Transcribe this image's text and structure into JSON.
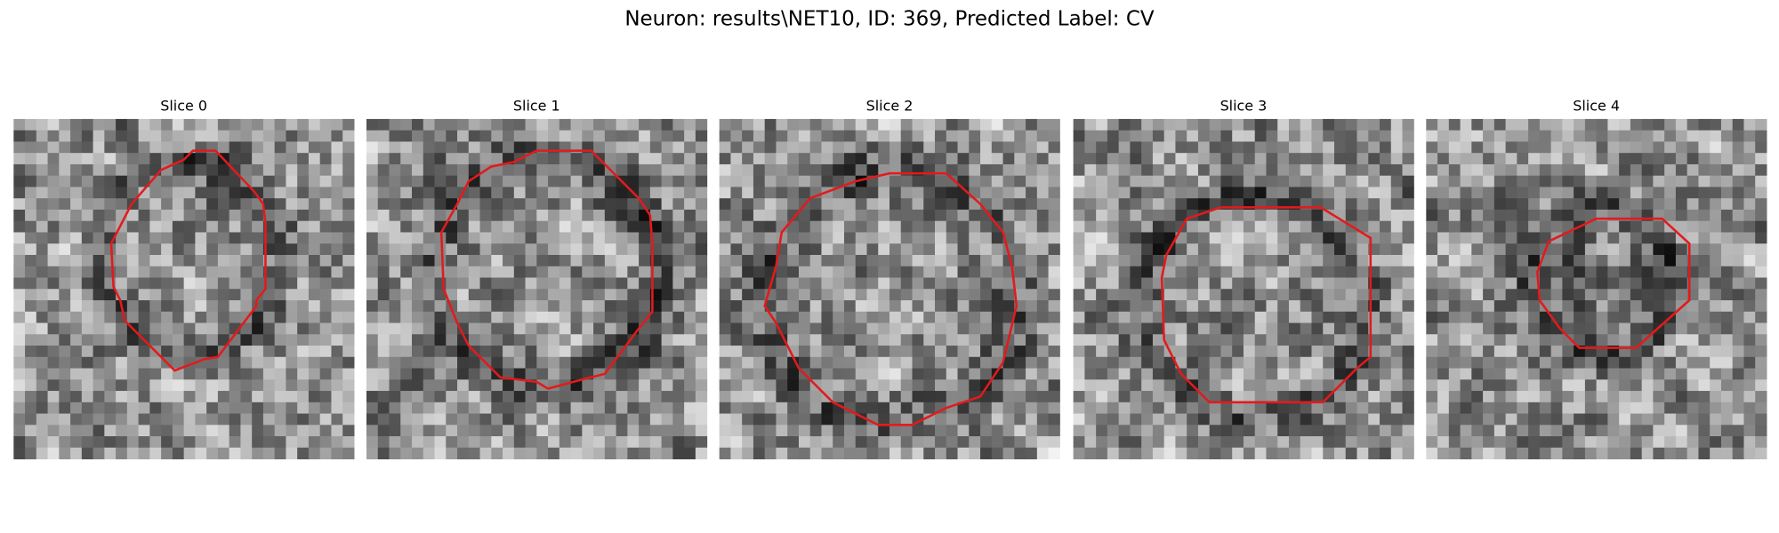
{
  "title": "Neuron: results\\NET10, ID: 369, Predicted Label: CV",
  "panels": [
    {
      "title": "Slice 0"
    },
    {
      "title": "Slice 1"
    },
    {
      "title": "Slice 2"
    },
    {
      "title": "Slice 3"
    },
    {
      "title": "Slice 4"
    }
  ]
}
